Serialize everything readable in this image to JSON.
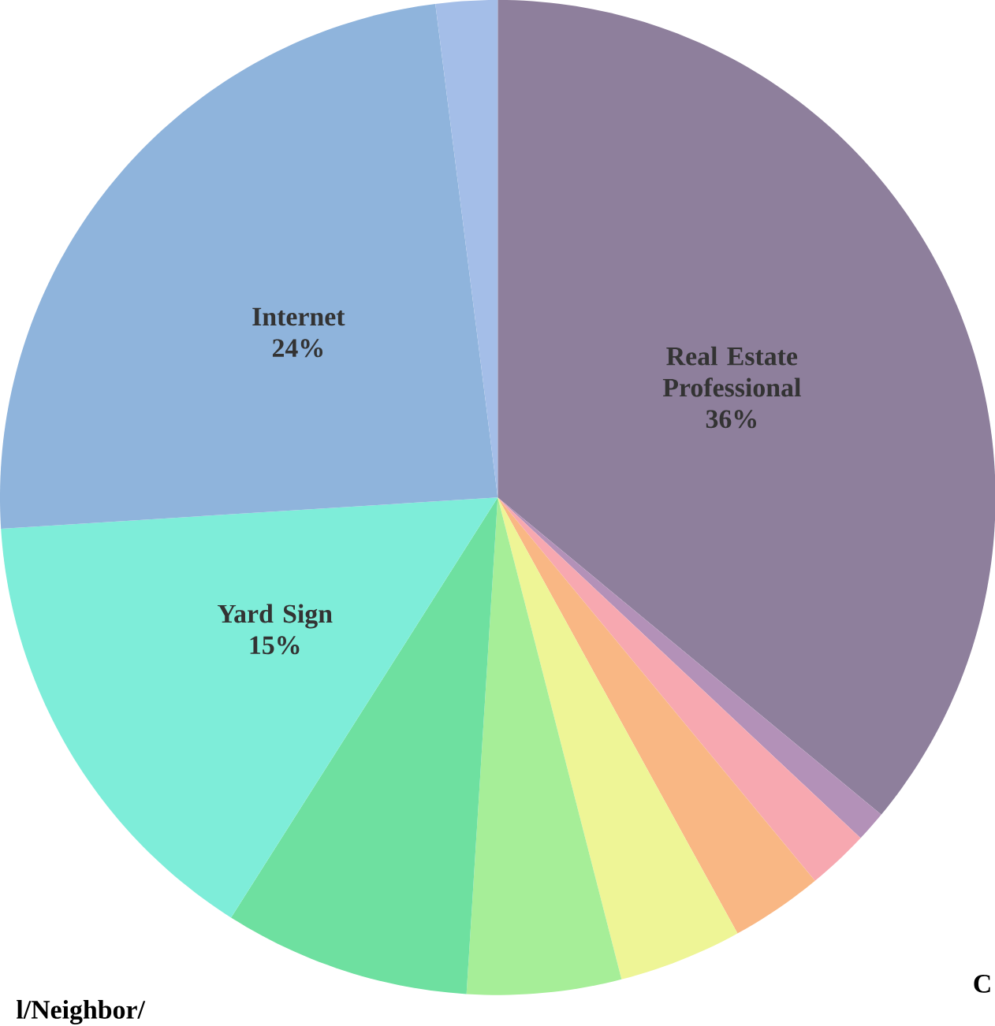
{
  "chart_data": {
    "type": "pie",
    "categories": [
      "Real Estate Professional",
      null,
      null,
      null,
      null,
      null,
      null,
      "Yard Sign",
      "Internet",
      null
    ],
    "values": [
      36,
      1,
      2,
      3,
      4,
      5,
      8,
      15,
      24,
      2
    ],
    "value_labels": [
      "36%",
      null,
      null,
      null,
      null,
      null,
      null,
      "15%",
      "24%",
      null
    ],
    "colors": [
      "#8e7f9c",
      "#b391b8",
      "#f7a8b0",
      "#f9b784",
      "#eef596",
      "#a6ee98",
      "#6ee0a0",
      "#7eedd9",
      "#8fb4dc",
      "#a4bee8"
    ],
    "annotations": [
      "l/Neighbor/",
      "C"
    ]
  }
}
